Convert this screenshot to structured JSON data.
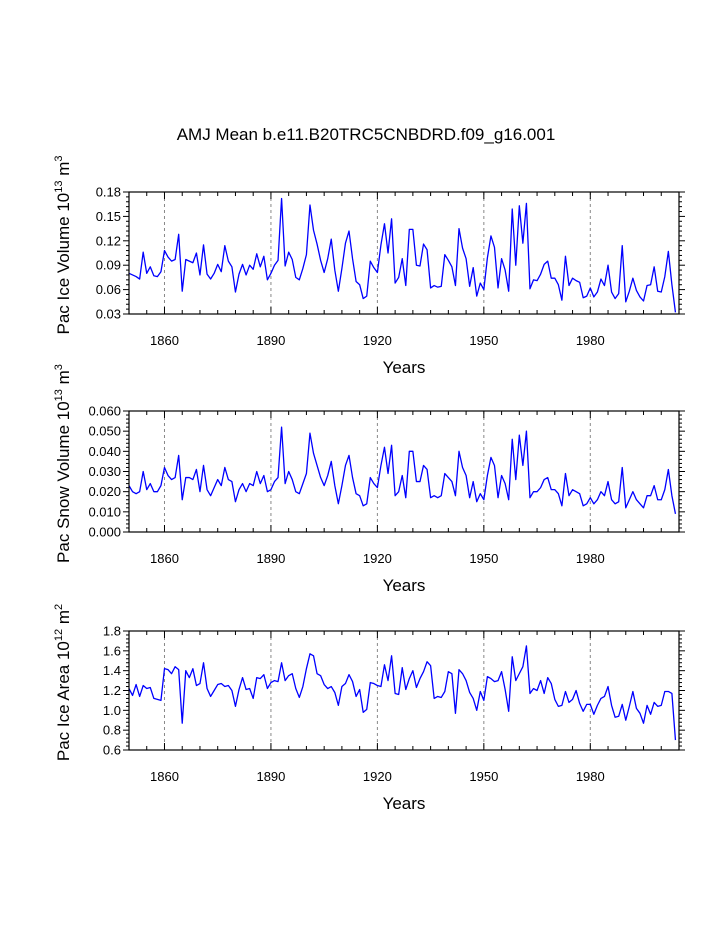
{
  "figure": {
    "title": "AMJ Mean b.e11.B20TRC5CNBDRD.f09_g16.001",
    "line_color": "#0000ff",
    "ref_line_color": "#888888"
  },
  "chart_data": [
    {
      "type": "line",
      "ylabel": "Pac Ice Volume 10",
      "ylabel_exp": "13",
      "ylabel_unit": "m",
      "ylabel_unit_exp": "3",
      "xlabel": "Years",
      "xlim": [
        1850,
        2005
      ],
      "ylim": [
        0.03,
        0.18
      ],
      "xticks": [
        1860,
        1890,
        1920,
        1950,
        1980
      ],
      "yticks": [
        0.03,
        0.06,
        0.09,
        0.12,
        0.15,
        0.18
      ],
      "ytick_labels": [
        "0.03",
        "0.06",
        "0.09",
        "0.12",
        "0.15",
        "0.18"
      ],
      "ref_lines": [
        1860,
        1890,
        1920,
        1950,
        1980
      ],
      "x_start": 1850,
      "values": [
        0.08,
        0.078,
        0.076,
        0.073,
        0.106,
        0.08,
        0.088,
        0.077,
        0.076,
        0.082,
        0.108,
        0.1,
        0.095,
        0.097,
        0.128,
        0.058,
        0.097,
        0.095,
        0.093,
        0.105,
        0.078,
        0.115,
        0.079,
        0.073,
        0.08,
        0.091,
        0.082,
        0.114,
        0.095,
        0.088,
        0.057,
        0.079,
        0.091,
        0.078,
        0.09,
        0.085,
        0.104,
        0.088,
        0.101,
        0.072,
        0.08,
        0.09,
        0.096,
        0.172,
        0.089,
        0.106,
        0.097,
        0.075,
        0.072,
        0.086,
        0.103,
        0.164,
        0.133,
        0.116,
        0.096,
        0.081,
        0.098,
        0.122,
        0.084,
        0.058,
        0.086,
        0.117,
        0.132,
        0.098,
        0.07,
        0.066,
        0.049,
        0.052,
        0.095,
        0.087,
        0.081,
        0.115,
        0.141,
        0.105,
        0.147,
        0.068,
        0.075,
        0.098,
        0.065,
        0.134,
        0.134,
        0.09,
        0.089,
        0.116,
        0.109,
        0.062,
        0.065,
        0.063,
        0.064,
        0.103,
        0.096,
        0.088,
        0.065,
        0.135,
        0.111,
        0.098,
        0.064,
        0.087,
        0.052,
        0.068,
        0.06,
        0.099,
        0.126,
        0.112,
        0.062,
        0.098,
        0.084,
        0.058,
        0.159,
        0.09,
        0.163,
        0.117,
        0.166,
        0.061,
        0.072,
        0.071,
        0.079,
        0.091,
        0.095,
        0.074,
        0.074,
        0.066,
        0.047,
        0.101,
        0.065,
        0.074,
        0.071,
        0.069,
        0.05,
        0.052,
        0.062,
        0.051,
        0.057,
        0.073,
        0.065,
        0.09,
        0.057,
        0.049,
        0.055,
        0.114,
        0.045,
        0.058,
        0.074,
        0.059,
        0.051,
        0.046,
        0.065,
        0.066,
        0.088,
        0.058,
        0.057,
        0.076,
        0.107,
        0.066,
        0.032
      ]
    },
    {
      "type": "line",
      "ylabel": "Pac Snow Volume 10",
      "ylabel_exp": "13",
      "ylabel_unit": "m",
      "ylabel_unit_exp": "3",
      "xlabel": "Years",
      "xlim": [
        1850,
        2005
      ],
      "ylim": [
        0.0,
        0.06
      ],
      "xticks": [
        1860,
        1890,
        1920,
        1950,
        1980
      ],
      "yticks": [
        0.0,
        0.01,
        0.02,
        0.03,
        0.04,
        0.05,
        0.06
      ],
      "ytick_labels": [
        "0.000",
        "0.010",
        "0.020",
        "0.030",
        "0.040",
        "0.050",
        "0.060"
      ],
      "ref_lines": [
        1860,
        1890,
        1920,
        1950,
        1980
      ],
      "x_start": 1850,
      "values": [
        0.023,
        0.02,
        0.019,
        0.02,
        0.03,
        0.021,
        0.024,
        0.02,
        0.02,
        0.023,
        0.032,
        0.028,
        0.026,
        0.027,
        0.038,
        0.016,
        0.027,
        0.027,
        0.026,
        0.031,
        0.02,
        0.033,
        0.021,
        0.018,
        0.022,
        0.026,
        0.023,
        0.032,
        0.026,
        0.025,
        0.015,
        0.021,
        0.024,
        0.02,
        0.024,
        0.023,
        0.03,
        0.024,
        0.028,
        0.02,
        0.021,
        0.025,
        0.027,
        0.052,
        0.024,
        0.03,
        0.026,
        0.02,
        0.019,
        0.024,
        0.029,
        0.049,
        0.039,
        0.033,
        0.027,
        0.023,
        0.028,
        0.035,
        0.023,
        0.014,
        0.023,
        0.033,
        0.038,
        0.027,
        0.019,
        0.018,
        0.013,
        0.014,
        0.027,
        0.024,
        0.022,
        0.033,
        0.042,
        0.029,
        0.043,
        0.018,
        0.02,
        0.028,
        0.017,
        0.04,
        0.04,
        0.025,
        0.025,
        0.033,
        0.031,
        0.017,
        0.018,
        0.017,
        0.018,
        0.029,
        0.027,
        0.025,
        0.018,
        0.04,
        0.032,
        0.028,
        0.017,
        0.025,
        0.015,
        0.019,
        0.016,
        0.028,
        0.037,
        0.033,
        0.017,
        0.028,
        0.024,
        0.016,
        0.046,
        0.026,
        0.048,
        0.033,
        0.05,
        0.017,
        0.02,
        0.02,
        0.022,
        0.026,
        0.027,
        0.021,
        0.021,
        0.019,
        0.013,
        0.029,
        0.018,
        0.021,
        0.02,
        0.019,
        0.013,
        0.014,
        0.017,
        0.014,
        0.016,
        0.02,
        0.018,
        0.025,
        0.016,
        0.014,
        0.015,
        0.032,
        0.012,
        0.016,
        0.02,
        0.016,
        0.014,
        0.012,
        0.018,
        0.018,
        0.023,
        0.016,
        0.016,
        0.021,
        0.031,
        0.018,
        0.009
      ]
    },
    {
      "type": "line",
      "ylabel": "Pac Ice Area 10",
      "ylabel_exp": "12",
      "ylabel_unit": "m",
      "ylabel_unit_exp": "2",
      "xlabel": "Years",
      "xlim": [
        1850,
        2005
      ],
      "ylim": [
        0.6,
        1.8
      ],
      "xticks": [
        1860,
        1890,
        1920,
        1950,
        1980
      ],
      "yticks": [
        0.6,
        0.8,
        1.0,
        1.2,
        1.4,
        1.6,
        1.8
      ],
      "ytick_labels": [
        "0.6",
        "0.8",
        "1.0",
        "1.2",
        "1.4",
        "1.6",
        "1.8"
      ],
      "ref_lines": [
        1860,
        1890,
        1920,
        1950,
        1980
      ],
      "x_start": 1850,
      "values": [
        1.22,
        1.15,
        1.26,
        1.14,
        1.25,
        1.22,
        1.23,
        1.12,
        1.11,
        1.1,
        1.42,
        1.41,
        1.37,
        1.44,
        1.41,
        0.87,
        1.4,
        1.33,
        1.42,
        1.25,
        1.27,
        1.48,
        1.22,
        1.14,
        1.2,
        1.26,
        1.27,
        1.24,
        1.25,
        1.2,
        1.04,
        1.21,
        1.33,
        1.21,
        1.22,
        1.12,
        1.33,
        1.32,
        1.36,
        1.22,
        1.28,
        1.3,
        1.29,
        1.48,
        1.3,
        1.35,
        1.37,
        1.22,
        1.13,
        1.24,
        1.42,
        1.57,
        1.55,
        1.37,
        1.35,
        1.26,
        1.22,
        1.24,
        1.18,
        1.05,
        1.24,
        1.27,
        1.36,
        1.29,
        1.14,
        1.21,
        0.98,
        1.01,
        1.28,
        1.27,
        1.25,
        1.24,
        1.46,
        1.3,
        1.55,
        1.17,
        1.16,
        1.43,
        1.21,
        1.32,
        1.4,
        1.23,
        1.32,
        1.39,
        1.49,
        1.45,
        1.12,
        1.14,
        1.13,
        1.19,
        1.39,
        1.37,
        0.97,
        1.41,
        1.37,
        1.3,
        1.18,
        1.12,
        1.0,
        1.19,
        1.1,
        1.34,
        1.32,
        1.29,
        1.3,
        1.39,
        1.21,
        0.99,
        1.54,
        1.3,
        1.37,
        1.44,
        1.65,
        1.17,
        1.22,
        1.2,
        1.3,
        1.17,
        1.33,
        1.27,
        1.11,
        1.04,
        1.05,
        1.19,
        1.08,
        1.11,
        1.2,
        1.07,
        0.99,
        1.06,
        1.06,
        0.96,
        1.05,
        1.12,
        1.14,
        1.24,
        1.05,
        0.93,
        0.94,
        1.06,
        0.9,
        1.04,
        1.19,
        1.02,
        0.97,
        0.87,
        1.05,
        0.96,
        1.08,
        1.04,
        1.05,
        1.19,
        1.19,
        1.17,
        0.7
      ]
    }
  ]
}
